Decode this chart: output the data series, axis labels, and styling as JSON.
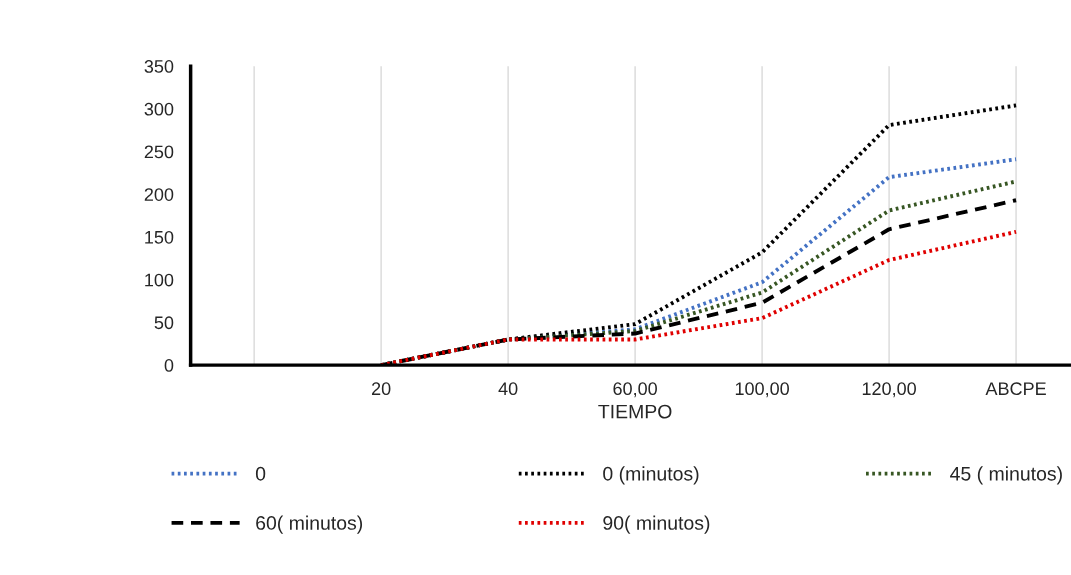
{
  "chart_data": {
    "type": "line",
    "xlabel": "TIEMPO",
    "categories": [
      null,
      "20",
      "40",
      "60,00",
      "100,00",
      "120,00",
      "ABCPE"
    ],
    "ylim": [
      0,
      350
    ],
    "yticks": [
      0,
      50,
      100,
      150,
      200,
      250,
      300,
      350
    ],
    "grid": "x",
    "legend": "bottom",
    "marker": "none",
    "series": [
      {
        "name": "0",
        "color": "#4472c4",
        "line_style": "dotted",
        "values": [
          null,
          0,
          30,
          42,
          97,
          220,
          241
        ]
      },
      {
        "name": "0 (minutos)",
        "color": "#000000",
        "line_style": "dotted",
        "values": [
          null,
          0,
          30,
          48,
          132,
          281,
          304
        ]
      },
      {
        "name": "45 ( minutos)",
        "color": "#375623",
        "line_style": "dotted",
        "values": [
          null,
          0,
          30,
          40,
          85,
          181,
          215
        ]
      },
      {
        "name": "60( minutos)",
        "color": "#000000",
        "line_style": "dashed",
        "values": [
          null,
          0,
          30,
          37,
          73,
          159,
          193
        ]
      },
      {
        "name": "90( minutos)",
        "color": "#e00000",
        "line_style": "dotted",
        "values": [
          null,
          0,
          30,
          30,
          55,
          123,
          156
        ]
      }
    ]
  }
}
